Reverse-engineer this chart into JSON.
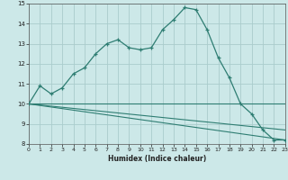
{
  "xlabel": "Humidex (Indice chaleur)",
  "bg_color": "#cce8e8",
  "grid_color": "#aacccc",
  "line_color": "#2e7d72",
  "x_min": 0,
  "x_max": 23,
  "y_min": 8,
  "y_max": 15,
  "xticks": [
    0,
    1,
    2,
    3,
    4,
    5,
    6,
    7,
    8,
    9,
    10,
    11,
    12,
    13,
    14,
    15,
    16,
    17,
    18,
    19,
    20,
    21,
    22,
    23
  ],
  "yticks": [
    8,
    9,
    10,
    11,
    12,
    13,
    14,
    15
  ],
  "curve1_x": [
    0,
    1,
    2,
    3,
    4,
    5,
    6,
    7,
    8,
    9,
    10,
    11,
    12,
    13,
    14,
    15,
    16,
    17,
    18,
    19,
    20,
    21,
    22,
    23
  ],
  "curve1_y": [
    10.0,
    10.9,
    10.5,
    10.8,
    11.5,
    11.8,
    12.5,
    13.0,
    13.2,
    12.8,
    12.7,
    12.8,
    13.7,
    14.2,
    14.8,
    14.7,
    13.7,
    12.3,
    11.3,
    10.0,
    9.5,
    8.7,
    8.2,
    8.2
  ],
  "curve2_x": [
    0,
    23
  ],
  "curve2_y": [
    10.0,
    10.0
  ],
  "curve3_x": [
    0,
    23
  ],
  "curve3_y": [
    10.0,
    8.7
  ],
  "curve4_x": [
    0,
    23
  ],
  "curve4_y": [
    10.0,
    8.2
  ]
}
